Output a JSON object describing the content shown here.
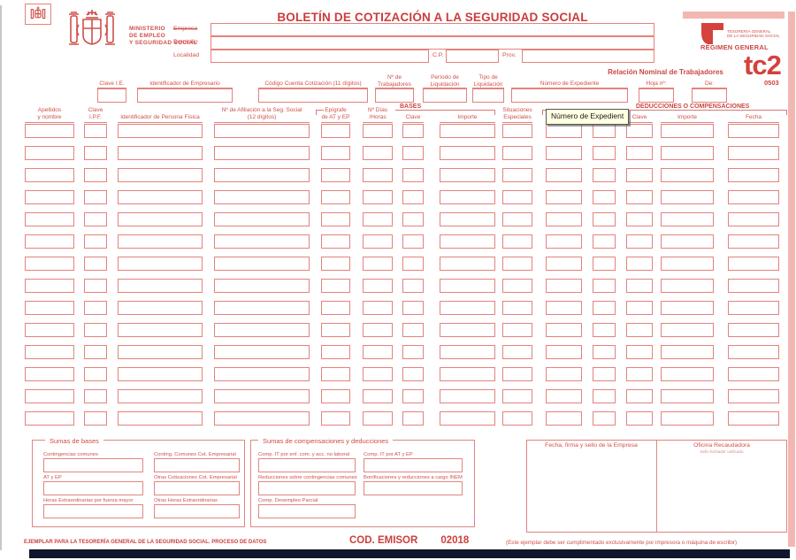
{
  "brand": {
    "ministry": "MINISTERIO\nDE EMPLEO\nY SEGURIDAD SOCIAL",
    "tgss": "TESORERÍA GENERAL\nDE LA SEGURIDAD SOCIAL",
    "regimen": "RÉGIMEN GENERAL",
    "model": "tc2",
    "model_code": "0503"
  },
  "title": "BOLETÍN DE COTIZACIÓN A LA SEGURIDAD SOCIAL",
  "subtitle": "Relación Nominal de Trabajadores",
  "company": {
    "empresa": "Empresa",
    "domicilio": "Domicilio",
    "localidad": "Localidad",
    "cp": "C.P.",
    "prov": "Prov."
  },
  "header_fields": [
    {
      "label": "Clave I.E."
    },
    {
      "label": "Identificador de Empresario"
    },
    {
      "label": "Código Cuenta Cotización (11 dígitos)"
    },
    {
      "label": "Nº de\nTrabajadores"
    },
    {
      "label": "Período de\nLiquidación"
    },
    {
      "label": "Tipo de\nLiquidación"
    },
    {
      "label": "Número de Expediente"
    },
    {
      "label": "Hoja nº:"
    },
    {
      "label": "De:"
    }
  ],
  "table": {
    "groups": {
      "bases": "BASES",
      "deducciones": "DEDUCCIONES O COMPENSACIONES"
    },
    "columns": [
      {
        "label": "Apellidos\ny nombre"
      },
      {
        "label": "Clave\nI.P.F."
      },
      {
        "label": "Identificador de Persona Física"
      },
      {
        "label": "Nº de Afiliación a la Seg. Social\n(12 dígitos)"
      },
      {
        "label": "Epígrafe\nde AT y EP"
      },
      {
        "label": "Nº Días\n/Horas"
      },
      {
        "label": "Clave"
      },
      {
        "label": "Importe"
      },
      {
        "label": "Situaciones\nEspeciales"
      },
      {
        "label": ""
      },
      {
        "label": ""
      },
      {
        "label": "Clave"
      },
      {
        "label": "Importe"
      },
      {
        "label": "Fecha"
      }
    ],
    "rows": 14
  },
  "tooltip": {
    "text": "Número de Expedient"
  },
  "sumas_bases": {
    "title": "Sumas de bases",
    "fields": [
      "Contingencias comunes",
      "Conting. Comunes Cot. Empresarial",
      "AT y EP",
      "Otras Cotizaciones Cot. Empresarial",
      "Horas Extraordinarias por fuerza mayor",
      "Otras Horas Extraordinarias"
    ]
  },
  "sumas_comp": {
    "title": "Sumas de compensaciones y deducciones",
    "fields": [
      "Comp. IT por enf. com. y acc. no laboral",
      "Comp. IT por AT y EP",
      "Reducciones sobre contingencias comunes",
      "Bonificaciones y reducciones a cargo INEM",
      "Comp. Desempleo Parcial"
    ]
  },
  "sign": {
    "empresa": "Fecha, firma y sello de la Empresa",
    "oficina": "Oficina Recaudadora",
    "sello": "Sello fechador unificado"
  },
  "footer": {
    "copy": "EJEMPLAR PARA LA TESORERÍA GENERAL DE LA SEGURIDAD SOCIAL. PROCESO DE DATOS",
    "cod_label": "COD. EMISOR",
    "cod_value": "02018",
    "note": "(Este ejemplar debe ser cumplimentado exclusivamente por impresora o máquina de escribir)"
  },
  "colors": {
    "form_red": "#cf4a45",
    "line_red": "#e4827d",
    "pink_strip": "#f2b7b3",
    "tooltip_bg": "#ffffe1",
    "footer_bar": "#11162e"
  }
}
